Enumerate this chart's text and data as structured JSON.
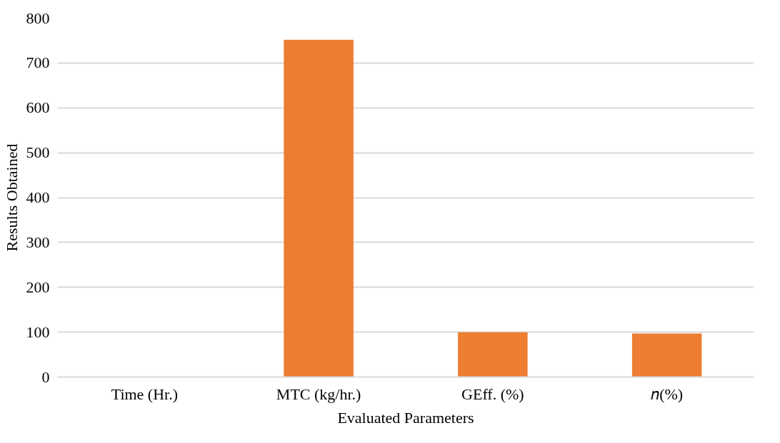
{
  "chart_data": {
    "type": "bar",
    "xlabel": "Evaluated Parameters",
    "ylabel": "Results Obtained",
    "categories": [
      "Time (Hr.)",
      "MTC (kg/hr.)",
      "GEff. (%)",
      "𝑛(%)"
    ],
    "values": [
      0,
      752,
      100,
      97
    ],
    "color": "#ed7d31",
    "ylim": [
      0,
      800
    ],
    "yticks": [
      0,
      100,
      200,
      300,
      400,
      500,
      600,
      700,
      800
    ],
    "grid": "y"
  }
}
